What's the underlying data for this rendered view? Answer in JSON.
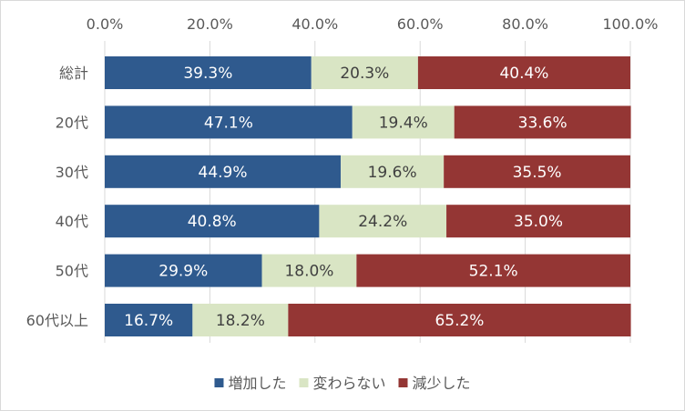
{
  "chart_data": {
    "type": "bar",
    "orientation": "horizontal",
    "stacked": "percent",
    "categories": [
      "総計",
      "20代",
      "30代",
      "40代",
      "50代",
      "60代以上"
    ],
    "series": [
      {
        "name": "増加した",
        "values": [
          39.3,
          47.1,
          44.9,
          40.8,
          29.9,
          16.7
        ],
        "color": "#2f5a8e",
        "label_color": "#ffffff"
      },
      {
        "name": "変わらない",
        "values": [
          20.3,
          19.4,
          19.6,
          24.2,
          18.0,
          18.2
        ],
        "color": "#d9e5c4",
        "label_color": "#404040"
      },
      {
        "name": "減少した",
        "values": [
          40.4,
          33.6,
          35.5,
          35.0,
          52.1,
          65.2
        ],
        "color": "#943634",
        "label_color": "#ffffff"
      }
    ],
    "x_ticks": [
      "0.0%",
      "20.0%",
      "40.0%",
      "60.0%",
      "80.0%",
      "100.0%"
    ],
    "xlim": [
      0,
      100
    ],
    "axis_position": "top",
    "grid": true,
    "legend_position": "bottom"
  }
}
